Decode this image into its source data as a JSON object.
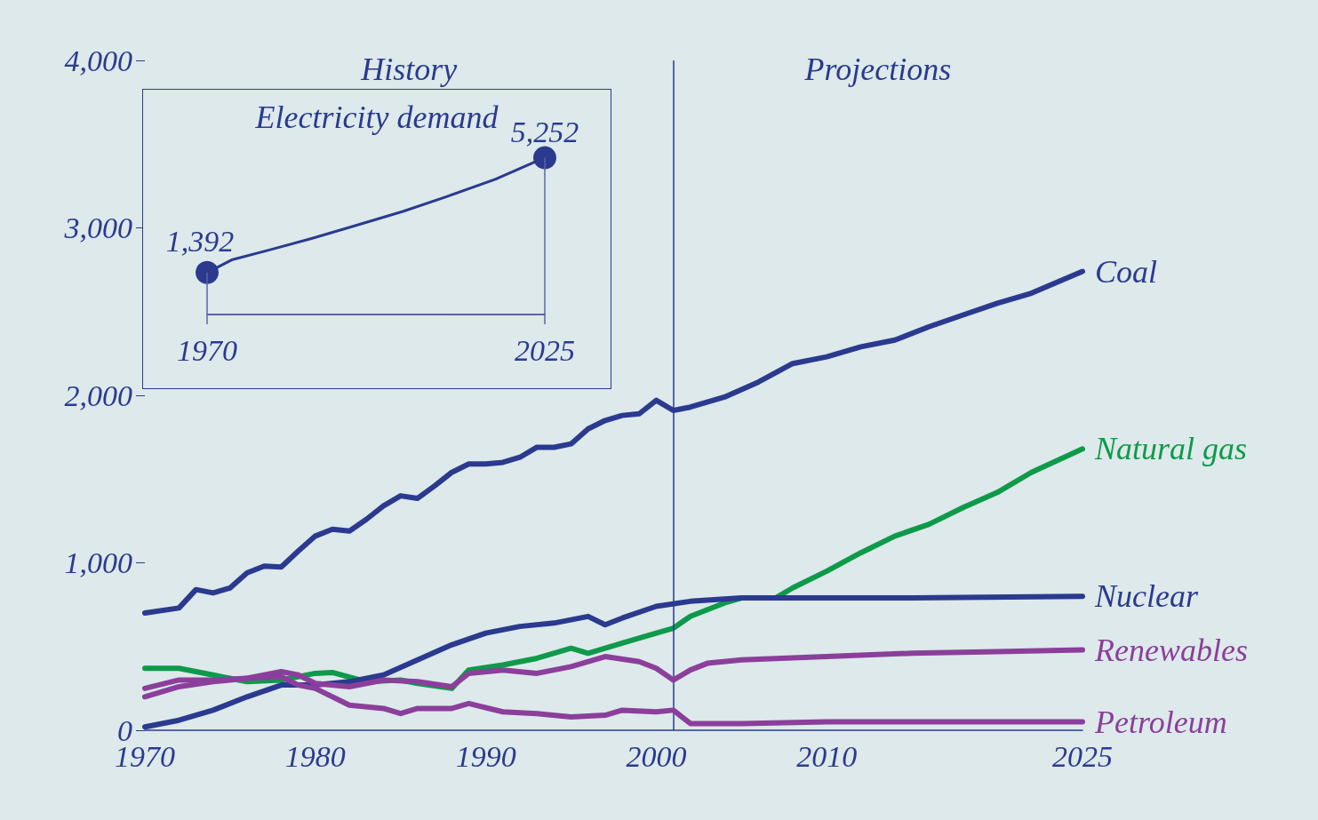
{
  "chart_data": [
    {
      "type": "line",
      "legend": false,
      "grid": false,
      "line_style": "solid",
      "marker": "none",
      "xlim": [
        1970,
        2025
      ],
      "xticks": [
        1970,
        1980,
        1990,
        2000,
        2010,
        2025
      ],
      "ylim": [
        0,
        4000
      ],
      "yticks": [
        0,
        {
          "value": 1000,
          "label": "1,000"
        },
        {
          "value": 2000,
          "label": "2,000"
        },
        {
          "value": 3000,
          "label": "3,000"
        },
        {
          "value": 4000,
          "label": "4,000"
        }
      ],
      "ref_lines": [
        {
          "axis": "x",
          "value": 2001,
          "color": "#2b3a8f"
        }
      ],
      "annotations": [
        "History",
        "Projections"
      ],
      "series": [
        {
          "name": "Coal",
          "color": "#2b3a8f",
          "x": [
            1970,
            1972,
            1973,
            1974,
            1975,
            1976,
            1977,
            1978,
            1979,
            1980,
            1981,
            1982,
            1983,
            1984,
            1985,
            1986,
            1987,
            1988,
            1989,
            1990,
            1991,
            1992,
            1993,
            1994,
            1995,
            1996,
            1997,
            1998,
            1999,
            2000,
            2001,
            2002,
            2004,
            2006,
            2008,
            2010,
            2012,
            2014,
            2016,
            2018,
            2020,
            2022,
            2025
          ],
          "values": [
            700,
            730,
            840,
            820,
            850,
            940,
            980,
            975,
            1070,
            1160,
            1200,
            1190,
            1260,
            1340,
            1400,
            1385,
            1460,
            1540,
            1590,
            1590,
            1600,
            1630,
            1690,
            1690,
            1710,
            1800,
            1850,
            1880,
            1890,
            1970,
            1910,
            1930,
            1990,
            2080,
            2190,
            2230,
            2290,
            2330,
            2410,
            2480,
            2550,
            2610,
            2740
          ]
        },
        {
          "name": "Natural gas",
          "color": "#0e9a4a",
          "x": [
            1970,
            1972,
            1974,
            1976,
            1978,
            1980,
            1981,
            1983,
            1985,
            1986,
            1988,
            1989,
            1991,
            1993,
            1995,
            1996,
            1998,
            2000,
            2001,
            2002,
            2004,
            2005,
            2007,
            2008,
            2010,
            2012,
            2014,
            2016,
            2018,
            2020,
            2022,
            2025
          ],
          "values": [
            370,
            370,
            330,
            290,
            300,
            340,
            345,
            290,
            300,
            280,
            250,
            360,
            390,
            430,
            490,
            460,
            520,
            580,
            610,
            680,
            760,
            790,
            790,
            850,
            950,
            1060,
            1160,
            1230,
            1330,
            1420,
            1540,
            1680
          ]
        },
        {
          "name": "Nuclear",
          "color": "#2b3a8f",
          "x": [
            1970,
            1972,
            1974,
            1976,
            1978,
            1980,
            1982,
            1984,
            1986,
            1988,
            1990,
            1992,
            1994,
            1996,
            1997,
            1998,
            2000,
            2002,
            2005,
            2010,
            2015,
            2025
          ],
          "values": [
            20,
            60,
            120,
            200,
            270,
            270,
            290,
            330,
            420,
            510,
            580,
            620,
            640,
            680,
            630,
            670,
            740,
            770,
            790,
            790,
            790,
            800
          ]
        },
        {
          "name": "Renewables",
          "color": "#8b3f9b",
          "x": [
            1970,
            1972,
            1974,
            1976,
            1978,
            1979,
            1980,
            1982,
            1984,
            1986,
            1988,
            1989,
            1991,
            1993,
            1995,
            1997,
            1999,
            2000,
            2001,
            2002,
            2003,
            2005,
            2010,
            2015,
            2020,
            2025
          ],
          "values": [
            200,
            260,
            290,
            310,
            350,
            330,
            280,
            260,
            300,
            290,
            260,
            340,
            360,
            340,
            380,
            440,
            410,
            370,
            300,
            360,
            400,
            420,
            440,
            460,
            470,
            480
          ]
        },
        {
          "name": "Petroleum",
          "color": "#8b3f9b",
          "x": [
            1970,
            1972,
            1974,
            1976,
            1978,
            1979,
            1980,
            1982,
            1984,
            1985,
            1986,
            1988,
            1989,
            1991,
            1993,
            1995,
            1997,
            1998,
            2000,
            2001,
            2002,
            2005,
            2010,
            2025
          ],
          "values": [
            250,
            300,
            300,
            310,
            320,
            270,
            250,
            150,
            130,
            100,
            130,
            130,
            160,
            110,
            100,
            80,
            90,
            120,
            110,
            120,
            40,
            40,
            50,
            50
          ]
        }
      ]
    },
    {
      "type": "line",
      "title": "Electricity demand",
      "tick_labels": "x",
      "xlim": [
        1970,
        2025
      ],
      "xticks": [
        1970,
        2025
      ],
      "x": [
        1970,
        1974,
        1980,
        1987,
        1994,
        2002,
        2009,
        2017,
        2025
      ],
      "series": [
        {
          "color": "#2b3a8f",
          "values": [
            1392,
            1817,
            2144,
            2537,
            2962,
            3453,
            3943,
            4532,
            5252
          ],
          "value_labels": [
            "1,392",
            null,
            null,
            null,
            null,
            null,
            null,
            null,
            "5,252"
          ]
        }
      ]
    }
  ]
}
